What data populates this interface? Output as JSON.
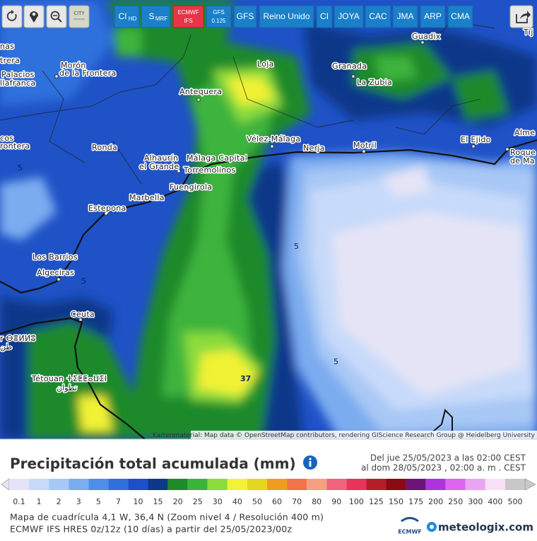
{
  "toolbar": {
    "city": "CITY",
    "buttons": [
      {
        "label": "CI",
        "sub": "HD"
      },
      {
        "label": "S",
        "sub": "MRF"
      },
      {
        "label": "ECMWF",
        "sub": "IFS"
      },
      {
        "label": "GFS",
        "sub": "0.125"
      },
      {
        "label": "GFS"
      },
      {
        "label": "Reino Unido"
      },
      {
        "label": "CI"
      },
      {
        "label": "JOYA"
      },
      {
        "label": "CAC"
      },
      {
        "label": "JMA"
      },
      {
        "label": "ARP"
      },
      {
        "label": "CMA"
      }
    ]
  },
  "map": {
    "places": [
      "nas",
      "trera",
      "Palacios",
      "llafranca",
      "Morón",
      "de la Frontera",
      "Loja",
      "Granada",
      "La Zubia",
      "Guadix",
      "Tíj",
      "Antequera",
      "cos",
      "rontera",
      "Ronda",
      "Vélez-Málaga",
      "Nerja",
      "Motril",
      "El Ejido",
      "Alme",
      "Roque",
      "de Ma",
      "Alhaurín",
      "el Grande",
      "Málaga Capital",
      "Torremolinos",
      "Fuengirola",
      "Marbella",
      "Estepona",
      "Los Barrios",
      "Algeciras",
      "Ceuta",
      "r ⴱⴻⵍⵍⵓ",
      "طن",
      "Tétouan ⵜⵉⵟⵟⴰⵡⵉⵏ",
      "تطوان"
    ],
    "contours": [
      5,
      5,
      5,
      5,
      37
    ],
    "attribution": "Kartenmaterial: Map data © OpenStreetMap contributors, rendering GIScience Research Group @ Heidelberg University"
  },
  "panel": {
    "title": "Precipitación total acumulada (mm)",
    "period": [
      "Del jue 25/05/2023 a  las 02:00  CEST",
      "al dom 28/05/2023 ,  02:00 a. m . CEST"
    ],
    "legend": {
      "values": [
        0.1,
        1,
        2,
        3,
        5,
        7,
        10,
        15,
        20,
        25,
        30,
        40,
        50,
        60,
        70,
        80,
        90,
        100,
        125,
        150,
        175,
        200,
        250,
        300,
        400,
        500
      ],
      "colors": [
        "#e4e4f6",
        "#c8dafa",
        "#a8c8f5",
        "#7cacf0",
        "#4f8ee8",
        "#2f70dc",
        "#1d4fc8",
        "#0e398a",
        "#1f8a2a",
        "#3cb43c",
        "#8cdc3c",
        "#f2f236",
        "#e2d81e",
        "#f09c22",
        "#f07446",
        "#f4a080",
        "#f0647e",
        "#e6345a",
        "#b41e28",
        "#8a0a16",
        "#6c1478",
        "#b032dc",
        "#dc66f0",
        "#e8a6f2",
        "#f8e0f8",
        "#c8c8c8"
      ]
    },
    "footer": [
      "Mapa de cuadrícula 4,1 W, 36,4 N (Zoom nivel 4 / Resolución 400 m)",
      "ECMWF IFS HRES 0z/12z (10 días) a partir del 25/05/2023/00z"
    ],
    "logos": {
      "ecmwf": "ECMWF",
      "meteologix": "meteologix.com"
    }
  }
}
